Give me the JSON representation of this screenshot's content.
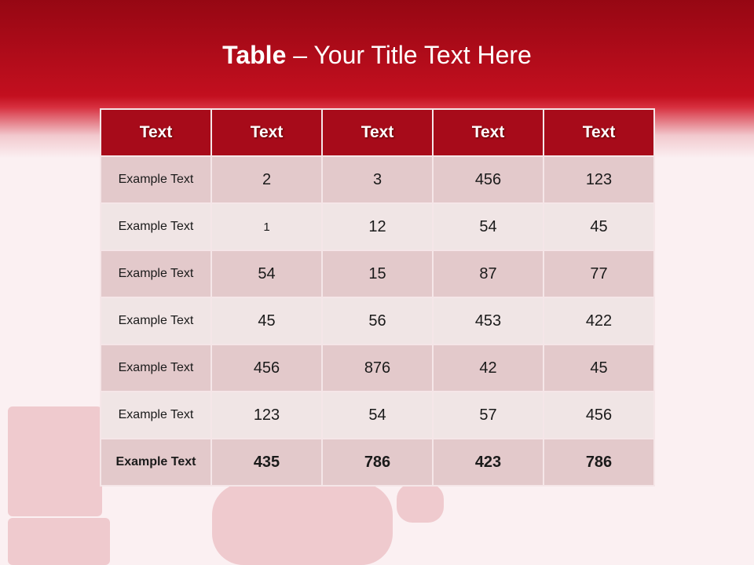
{
  "title": {
    "bold": "Table",
    "rest": " – Your Title Text Here"
  },
  "table": {
    "headers": [
      "Text",
      "Text",
      "Text",
      "Text",
      "Text"
    ],
    "rows": [
      [
        "Example Text",
        "2",
        "3",
        "456",
        "123"
      ],
      [
        "Example Text",
        "1",
        "12",
        "54",
        "45"
      ],
      [
        "Example Text",
        "54",
        "15",
        "87",
        "77"
      ],
      [
        "Example Text",
        "45",
        "56",
        "453",
        "422"
      ],
      [
        "Example Text",
        "456",
        "876",
        "42",
        "45"
      ],
      [
        "Example Text",
        "123",
        "54",
        "57",
        "456"
      ],
      [
        "Example Text",
        "435",
        "786",
        "423",
        "786"
      ]
    ]
  },
  "colors": {
    "header": "#a70b1a",
    "row_dark": "#e3c9cb",
    "row_light": "#f0e5e5"
  }
}
